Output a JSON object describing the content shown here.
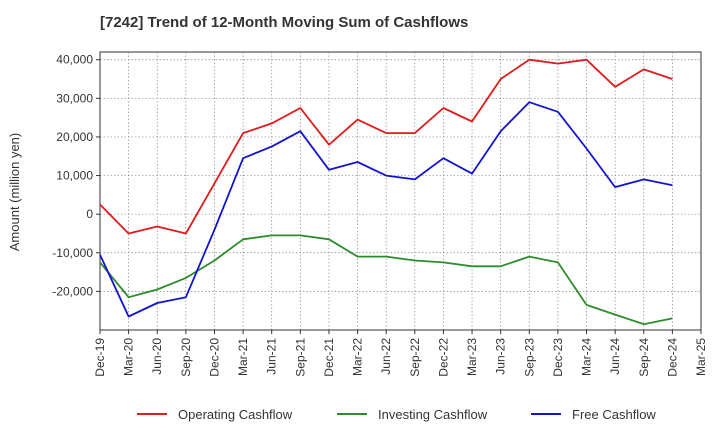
{
  "chart_data": {
    "type": "line",
    "title": "[7242]  Trend of 12-Month Moving Sum of Cashflows",
    "ylabel": "Amount (million yen)",
    "xlabel": "",
    "ylim": [
      -30000,
      42000
    ],
    "yticks": [
      40000,
      30000,
      20000,
      10000,
      0,
      -10000,
      -20000
    ],
    "ytick_labels": [
      "40,000",
      "30,000",
      "20,000",
      "10,000",
      "0",
      "-10,000",
      "-20,000"
    ],
    "categories": [
      "Dec-19",
      "Mar-20",
      "Jun-20",
      "Sep-20",
      "Dec-20",
      "Mar-21",
      "Jun-21",
      "Sep-21",
      "Dec-21",
      "Mar-22",
      "Jun-22",
      "Sep-22",
      "Dec-22",
      "Mar-23",
      "Jun-23",
      "Sep-23",
      "Dec-23",
      "Mar-24",
      "Jun-24",
      "Sep-24",
      "Dec-24",
      "Mar-25"
    ],
    "grid": true,
    "legend_position": "bottom",
    "series": [
      {
        "name": "Operating Cashflow",
        "color": "#dd1c1c",
        "values": [
          2500,
          -5000,
          -3200,
          -5000,
          8000,
          21000,
          23500,
          27500,
          18000,
          24500,
          21000,
          21000,
          27500,
          24000,
          35000,
          40000,
          39000,
          40000,
          33000,
          37500,
          35000,
          null
        ]
      },
      {
        "name": "Investing Cashflow",
        "color": "#2e8b2e",
        "values": [
          -12500,
          -21500,
          -19500,
          -16500,
          -12000,
          -6500,
          -5500,
          -5500,
          -6500,
          -11000,
          -11000,
          -12000,
          -12500,
          -13500,
          -13500,
          -11000,
          -12500,
          -23500,
          -26000,
          -28500,
          -27000,
          null
        ]
      },
      {
        "name": "Free Cashflow",
        "color": "#1414cc",
        "values": [
          -10500,
          -26500,
          -23000,
          -21500,
          -4000,
          14500,
          17500,
          21500,
          11500,
          13500,
          10000,
          9000,
          14500,
          10500,
          21500,
          29000,
          26500,
          17000,
          7000,
          9000,
          7500,
          null
        ]
      }
    ]
  }
}
